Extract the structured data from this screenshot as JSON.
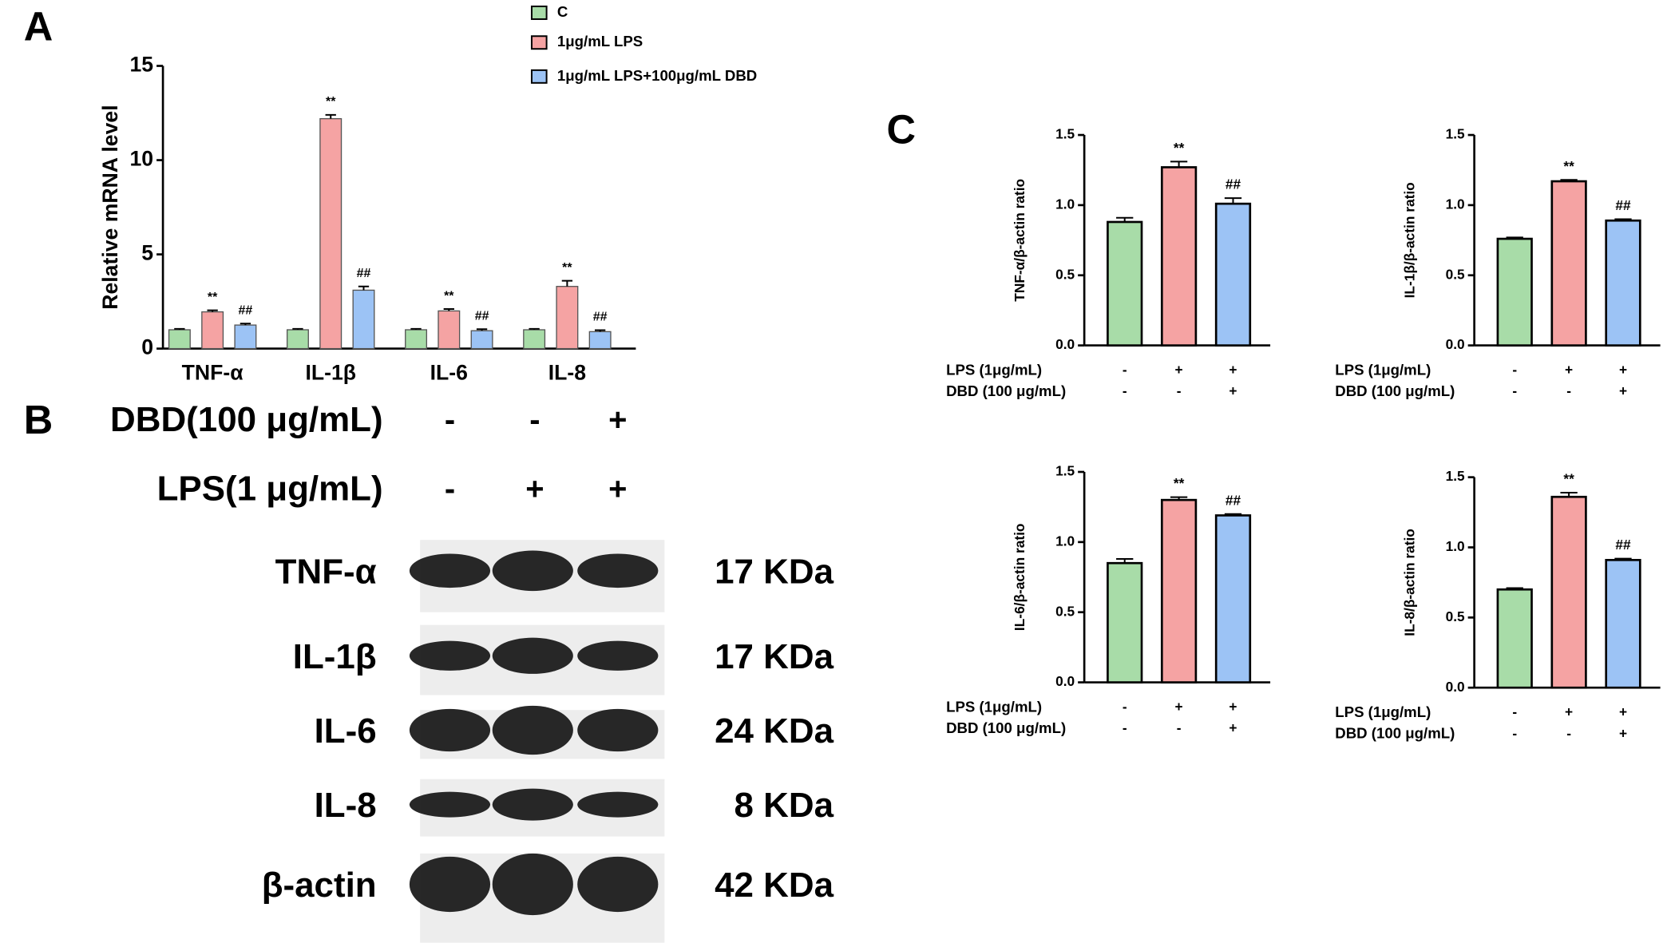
{
  "panels": [
    "A",
    "B",
    "C"
  ],
  "chart_data": [
    {
      "type": "bar",
      "ylabel": "Relative mRNA level",
      "categories": [
        "TNF-α",
        "IL-1β",
        "IL-6",
        "IL-8"
      ],
      "series": [
        {
          "name": "C",
          "color": "#a8dca8",
          "values": [
            1.0,
            1.0,
            1.0,
            1.0
          ],
          "errors": [
            0.05,
            0.05,
            0.05,
            0.05
          ],
          "labels": [
            null,
            null,
            null,
            null
          ]
        },
        {
          "name": "1μg/mL LPS",
          "color": "#f5a3a3",
          "values": [
            1.95,
            12.2,
            2.0,
            3.3
          ],
          "errors": [
            0.08,
            0.2,
            0.1,
            0.3
          ],
          "labels": [
            "**",
            "**",
            "**",
            "**"
          ]
        },
        {
          "name": "1μg/mL LPS+100μg/mL DBD",
          "color": "#9cc3f5",
          "values": [
            1.25,
            3.1,
            0.95,
            0.9
          ],
          "errors": [
            0.08,
            0.2,
            0.08,
            0.08
          ],
          "labels": [
            "##",
            "##",
            "##",
            "##"
          ]
        }
      ],
      "ylim": [
        0,
        15
      ],
      "yticks": [
        0,
        5,
        10,
        15
      ]
    },
    {
      "type": "bar",
      "ylabel": "TNF-α/β-actin ratio",
      "colors": [
        "#a8dca8",
        "#f5a3a3",
        "#9cc3f5"
      ],
      "values": [
        0.88,
        1.27,
        1.01
      ],
      "errors": [
        0.03,
        0.04,
        0.04
      ],
      "labels": [
        null,
        "**",
        "##"
      ],
      "conditions": [
        {
          "label": "LPS  (1μg/mL)",
          "signs": [
            "-",
            "+",
            "+"
          ]
        },
        {
          "label": "DBD (100 μg/mL)",
          "signs": [
            "-",
            "-",
            "+"
          ]
        }
      ],
      "ylim": [
        0,
        1.5
      ],
      "yticks": [
        {
          "value": 0,
          "label": "0.0"
        },
        0.5,
        {
          "value": 1,
          "label": "1.0"
        },
        1.5
      ]
    },
    {
      "type": "bar",
      "ylabel": "IL-1β/β-actin ratio",
      "colors": [
        "#a8dca8",
        "#f5a3a3",
        "#9cc3f5"
      ],
      "values": [
        0.76,
        1.17,
        0.89
      ],
      "errors": [
        0.01,
        0.01,
        0.01
      ],
      "labels": [
        null,
        "**",
        "##"
      ],
      "conditions": [
        {
          "label": "LPS  (1μg/mL)",
          "signs": [
            "-",
            "+",
            "+"
          ]
        },
        {
          "label": "DBD (100 μg/mL)",
          "signs": [
            "-",
            "-",
            "+"
          ]
        }
      ],
      "ylim": [
        0,
        1.5
      ],
      "yticks": [
        {
          "value": 0,
          "label": "0.0"
        },
        0.5,
        {
          "value": 1,
          "label": "1.0"
        },
        1.5
      ]
    },
    {
      "type": "bar",
      "ylabel": "IL-6/β-actin ratio",
      "colors": [
        "#a8dca8",
        "#f5a3a3",
        "#9cc3f5"
      ],
      "values": [
        0.85,
        1.3,
        1.19
      ],
      "errors": [
        0.03,
        0.02,
        0.01
      ],
      "labels": [
        null,
        "**",
        "##"
      ],
      "conditions": [
        {
          "label": "LPS  (1μg/mL)",
          "signs": [
            "-",
            "+",
            "+"
          ]
        },
        {
          "label": "DBD (100 μg/mL)",
          "signs": [
            "-",
            "-",
            "+"
          ]
        }
      ],
      "ylim": [
        0,
        1.5
      ],
      "yticks": [
        {
          "value": 0,
          "label": "0.0"
        },
        0.5,
        {
          "value": 1,
          "label": "1.0"
        },
        1.5
      ]
    },
    {
      "type": "bar",
      "ylabel": "IL-8/β-actin ratio",
      "colors": [
        "#a8dca8",
        "#f5a3a3",
        "#9cc3f5"
      ],
      "values": [
        0.7,
        1.36,
        0.91
      ],
      "errors": [
        0.01,
        0.03,
        0.01
      ],
      "labels": [
        null,
        "**",
        "##"
      ],
      "conditions": [
        {
          "label": "LPS  (1μg/mL)",
          "signs": [
            "-",
            "+",
            "+"
          ]
        },
        {
          "label": "DBD (100 μg/mL)",
          "signs": [
            "-",
            "-",
            "+"
          ]
        }
      ],
      "ylim": [
        0,
        1.5
      ],
      "yticks": [
        {
          "value": 0,
          "label": "0.0"
        },
        0.5,
        {
          "value": 1,
          "label": "1.0"
        },
        1.5
      ]
    }
  ],
  "blot": {
    "conditions": [
      {
        "label": "DBD(100 μg/mL)",
        "signs": [
          "-",
          "-",
          "+"
        ]
      },
      {
        "label": "LPS(1 μg/mL)",
        "signs": [
          "-",
          "+",
          "+"
        ]
      }
    ],
    "bands": [
      {
        "name": "TNF-α",
        "size": "17 KDa"
      },
      {
        "name": "IL-1β",
        "size": "17 KDa"
      },
      {
        "name": "IL-6",
        "size": "24 KDa"
      },
      {
        "name": "IL-8",
        "size": "8 KDa"
      },
      {
        "name": "β-actin",
        "size": "42 KDa"
      }
    ]
  }
}
